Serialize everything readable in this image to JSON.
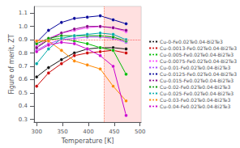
{
  "chart_data": {
    "type": "line",
    "xlabel": "Temperature [K]",
    "ylabel": "Figure of merit, ZT",
    "xlim": [
      295,
      502
    ],
    "ylim": [
      0.28,
      1.15
    ],
    "xticks": [
      300,
      350,
      400,
      450,
      500
    ],
    "yticks": [
      0.3,
      0.4,
      0.5,
      0.6,
      0.7,
      0.8,
      0.9,
      {
        "value": 1.0,
        "label": "1.0"
      },
      1.1
    ],
    "grid": false,
    "legend": "right",
    "hline": {
      "value": 0.9,
      "color": "#ff6666"
    },
    "vline": {
      "value": 430,
      "color": "#ff8866"
    },
    "shade": {
      "range": [
        430,
        502
      ],
      "color": "#ffcccc"
    },
    "x": [
      300,
      323,
      348,
      373,
      398,
      423,
      448,
      473
    ],
    "series": [
      {
        "name": "Cu-0-Fe0.02Te0.04-Bi2Te3",
        "color": "#111111",
        "marker": "o",
        "values": [
          0.62,
          0.69,
          0.75,
          0.8,
          0.83,
          0.84,
          0.84,
          0.83
        ]
      },
      {
        "name": "Cu-0.0013-Fe0.02Te0.04-Bi2Te3",
        "color": "#cc0000",
        "marker": "o",
        "values": [
          0.55,
          0.65,
          0.72,
          0.78,
          0.8,
          0.81,
          0.82,
          0.8
        ]
      },
      {
        "name": "Cu-0.005-Fe0.02Te0.04-Bi2Te3",
        "color": "#00bb00",
        "marker": "o",
        "values": [
          0.84,
          0.9,
          0.91,
          0.89,
          0.87,
          0.84,
          0.82,
          0.64
        ]
      },
      {
        "name": "Cu-0.0075-Fe0.02Te0.04-Bi2Te3",
        "color": "#ff44ff",
        "marker": "o",
        "values": [
          0.85,
          0.91,
          0.95,
          0.97,
          0.99,
          1.0,
          0.99,
          0.96
        ]
      },
      {
        "name": "Cu-0.01-Fe0.02Te0.04-Bi2Te3",
        "color": "#aa44ff",
        "marker": "o",
        "values": [
          0.82,
          0.87,
          0.9,
          0.91,
          0.92,
          0.92,
          0.91,
          0.88
        ]
      },
      {
        "name": "Cu-0.0125-Fe0.02Te0.04-Bi2Te3",
        "color": "#000099",
        "marker": "o",
        "values": [
          0.88,
          0.97,
          1.03,
          1.06,
          1.07,
          1.08,
          1.05,
          1.02
        ]
      },
      {
        "name": "Cu-0.015-Fe0.02Te0.04-Bi2Te3",
        "color": "#880088",
        "marker": "o",
        "values": [
          0.84,
          0.9,
          0.95,
          0.98,
          1.0,
          1.0,
          0.99,
          0.97
        ]
      },
      {
        "name": "Cu-0.02-Fe0.02Te0.04-Bi2Te3",
        "color": "#009900",
        "marker": "o",
        "values": [
          0.87,
          0.91,
          0.93,
          0.93,
          0.93,
          0.93,
          0.92,
          0.89
        ]
      },
      {
        "name": "Cu-0.025-Fe0.02Te0.04-Bi2Te3",
        "color": "#00aaaa",
        "marker": "o",
        "values": [
          0.72,
          0.83,
          0.91,
          0.93,
          0.94,
          0.95,
          0.94,
          0.9
        ]
      },
      {
        "name": "Cu-0.03-Fe0.02Te0.04-Bi2Te3",
        "color": "#ff8800",
        "marker": "o",
        "values": [
          0.89,
          0.89,
          0.82,
          0.74,
          0.71,
          0.68,
          0.55,
          0.44
        ]
      },
      {
        "name": "Cu-0.04-Fe0.02Te0.04-Bi2Te3",
        "color": "#cc00cc",
        "marker": "o",
        "values": [
          0.81,
          0.86,
          0.88,
          0.87,
          0.83,
          0.78,
          0.7,
          0.33
        ]
      }
    ]
  }
}
